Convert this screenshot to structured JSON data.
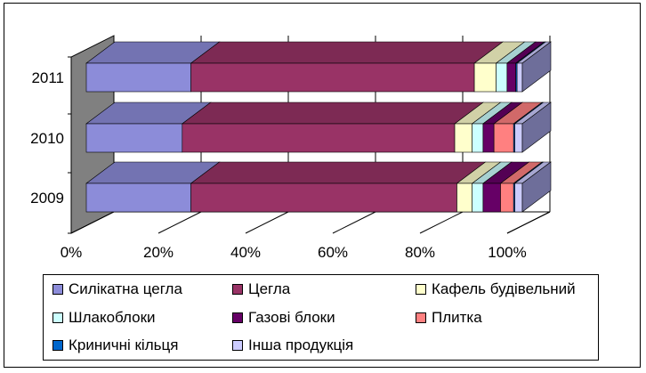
{
  "chart_data": {
    "type": "bar",
    "orientation": "horizontal",
    "stacked": "100%",
    "style": "3d",
    "categories": [
      "2009",
      "2010",
      "2011"
    ],
    "series": [
      {
        "name": "Силікатна цегла",
        "color": "#8C8CD9",
        "values": [
          24,
          22,
          24
        ]
      },
      {
        "name": "Цегла",
        "color": "#993366",
        "values": [
          61,
          62.5,
          65
        ]
      },
      {
        "name": "Кафель будівельний",
        "color": "#FFFFCC",
        "values": [
          3.5,
          4,
          5
        ]
      },
      {
        "name": "Шлакоблоки",
        "color": "#CCFFFF",
        "values": [
          2.5,
          2.5,
          2.5
        ]
      },
      {
        "name": "Газові блоки",
        "color": "#660066",
        "values": [
          4,
          2.5,
          2
        ]
      },
      {
        "name": "Плитка",
        "color": "#FF8080",
        "values": [
          3,
          4.5,
          0
        ]
      },
      {
        "name": "Криничні кільця",
        "color": "#0066CC",
        "values": [
          0.3,
          0.3,
          0.3
        ]
      },
      {
        "name": "Інша продукція",
        "color": "#CCCCFF",
        "values": [
          1.7,
          1.7,
          1.2
        ]
      }
    ],
    "xaxis": {
      "ticks": [
        "0%",
        "20%",
        "40%",
        "60%",
        "80%",
        "100%"
      ]
    },
    "xlim": [
      0,
      100
    ],
    "grid": true,
    "legend_position": "bottom"
  }
}
